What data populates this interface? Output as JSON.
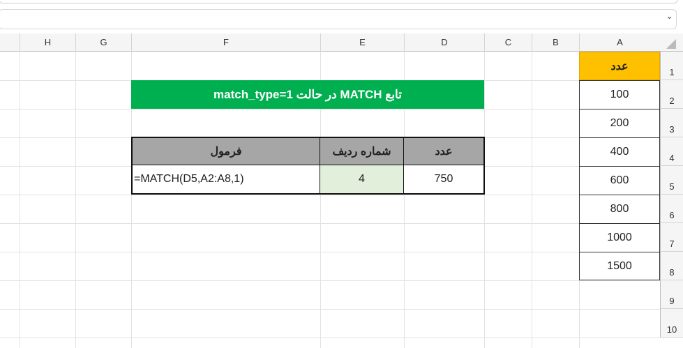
{
  "columns": [
    "H",
    "G",
    "F",
    "E",
    "D",
    "C",
    "B",
    "A"
  ],
  "rows": [
    "1",
    "2",
    "3",
    "4",
    "5",
    "6",
    "7",
    "8",
    "9",
    "10"
  ],
  "colA": {
    "header": "عدد",
    "values": [
      "100",
      "200",
      "400",
      "600",
      "800",
      "1000",
      "1500"
    ]
  },
  "title": "تابع MATCH در حالت match_type=1",
  "table": {
    "headers": {
      "number": "عدد",
      "row_number": "شماره ردیف",
      "formula": "فرمول"
    },
    "row": {
      "number": "750",
      "row_number": "4",
      "formula": "=MATCH(D5,A2:A8,1)"
    }
  },
  "colors": {
    "header_yellow": "#ffc000",
    "title_green": "#00b050",
    "table_header_gray": "#a6a6a6",
    "result_green": "#e2efda"
  }
}
